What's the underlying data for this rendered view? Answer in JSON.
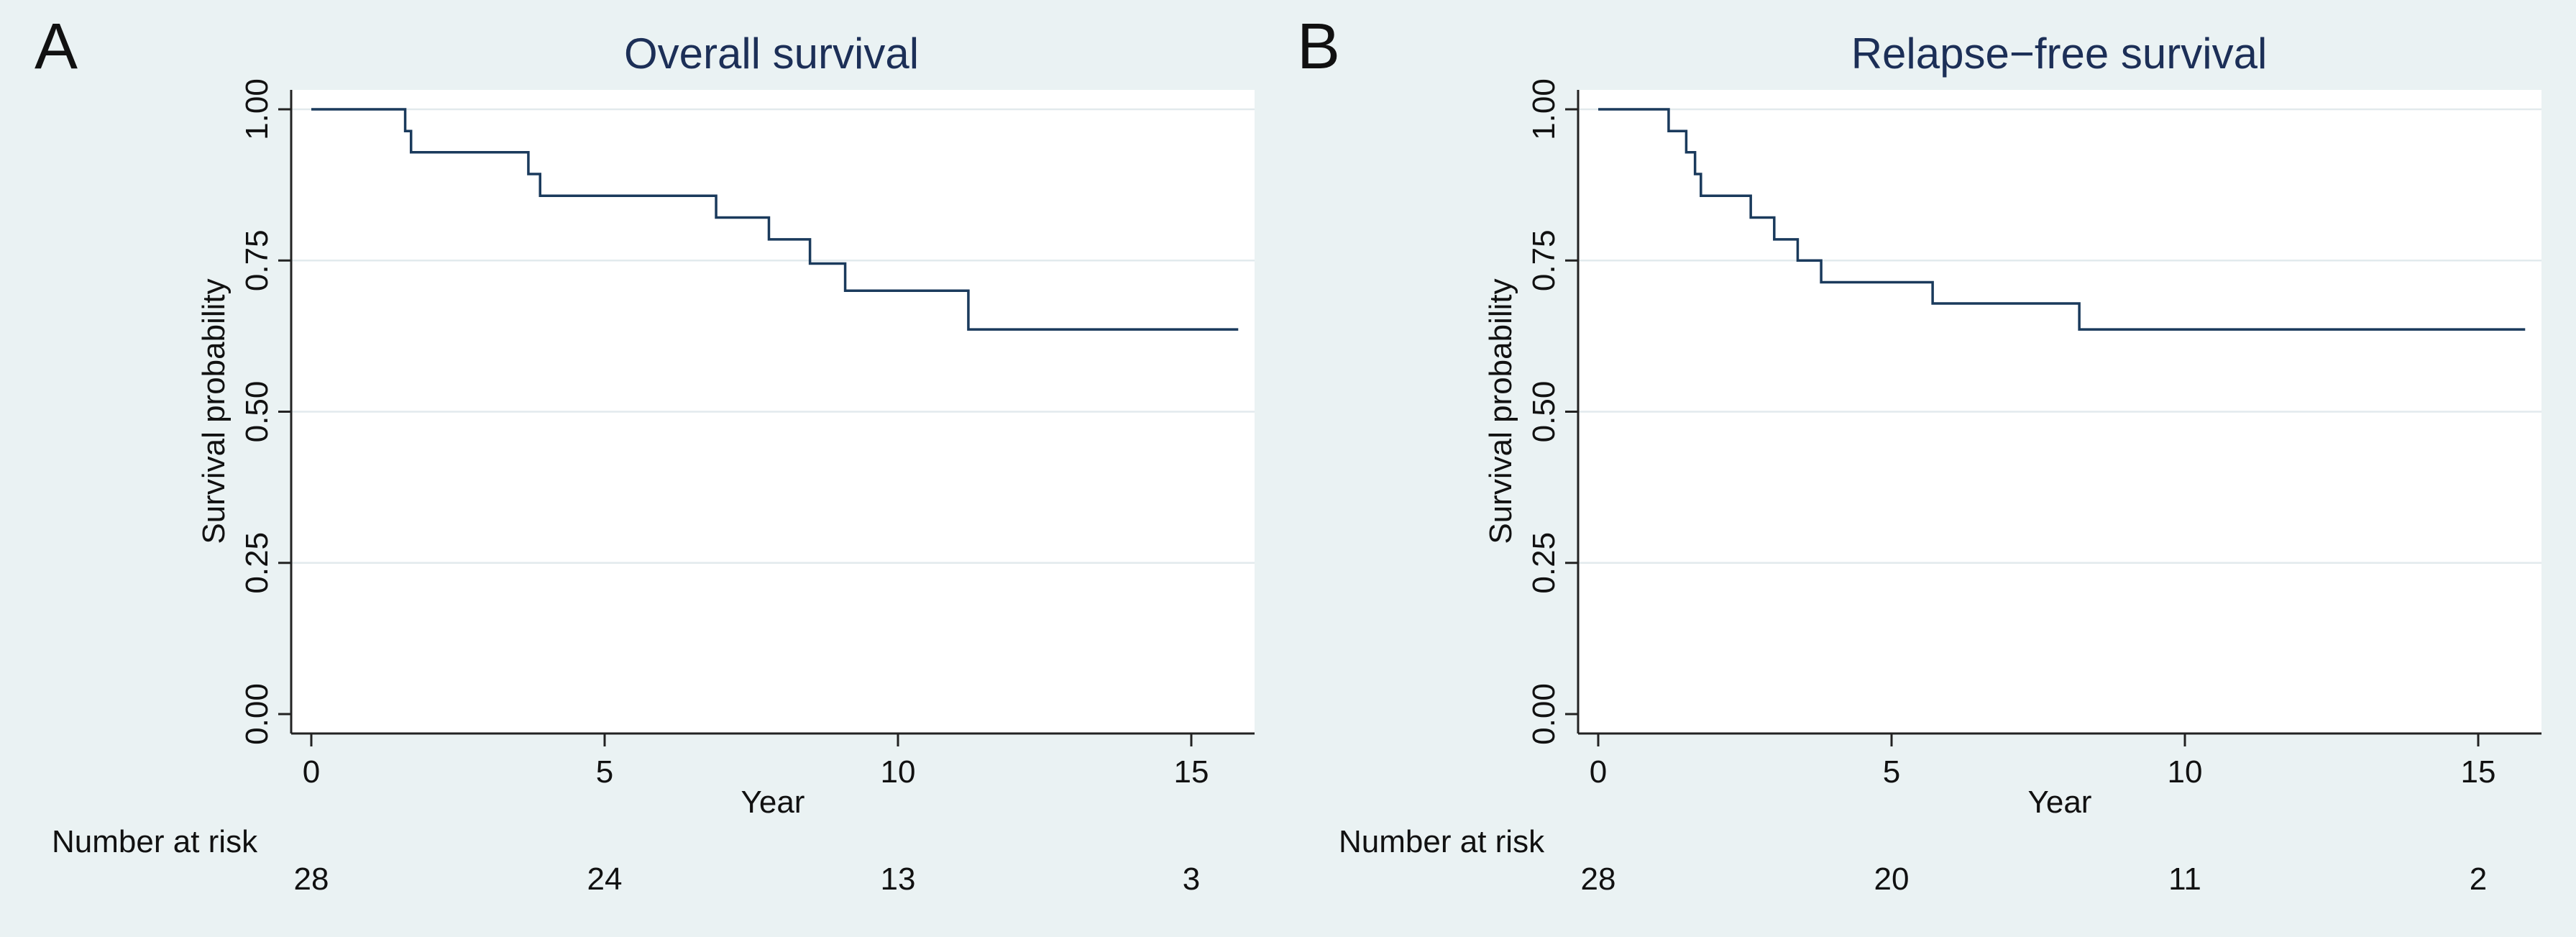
{
  "chart_data": [
    {
      "type": "line",
      "panel_label": "A",
      "title": "Overall survival",
      "xlabel": "Year",
      "ylabel": "Survival probability",
      "xlim": [
        0,
        16
      ],
      "ylim": [
        0,
        1
      ],
      "xticks": [
        0,
        5,
        10,
        15
      ],
      "xtick_labels": [
        "0",
        "5",
        "10",
        "15"
      ],
      "yticks": [
        0,
        0.25,
        0.5,
        0.75,
        1
      ],
      "ytick_labels": [
        "0.00",
        "0.25",
        "0.50",
        "0.75",
        "1.00"
      ],
      "grid": true,
      "series": [
        {
          "name": "Overall survival",
          "step": "post",
          "x": [
            0,
            1.6,
            1.7,
            3.7,
            3.9,
            6.9,
            7.8,
            8.5,
            9.1,
            11.2,
            15.8
          ],
          "y": [
            1.0,
            0.964,
            0.929,
            0.893,
            0.857,
            0.821,
            0.785,
            0.745,
            0.7,
            0.636,
            0.636
          ]
        }
      ],
      "risk_table": {
        "label": "Number at risk",
        "times": [
          0,
          5,
          10,
          15
        ],
        "counts": [
          "28",
          "24",
          "13",
          "3"
        ]
      }
    },
    {
      "type": "line",
      "panel_label": "B",
      "title": "Relapse−free survival",
      "xlabel": "Year",
      "ylabel": "Survival probability",
      "xlim": [
        0,
        16
      ],
      "ylim": [
        0,
        1
      ],
      "xticks": [
        0,
        5,
        10,
        15
      ],
      "xtick_labels": [
        "0",
        "5",
        "10",
        "15"
      ],
      "yticks": [
        0,
        0.25,
        0.5,
        0.75,
        1
      ],
      "ytick_labels": [
        "0.00",
        "0.25",
        "0.50",
        "0.75",
        "1.00"
      ],
      "grid": true,
      "series": [
        {
          "name": "Relapse-free survival",
          "step": "post",
          "x": [
            0,
            1.2,
            1.5,
            1.65,
            1.75,
            2.6,
            3.0,
            3.4,
            3.8,
            5.7,
            8.2,
            15.8
          ],
          "y": [
            1.0,
            0.964,
            0.929,
            0.893,
            0.857,
            0.821,
            0.785,
            0.75,
            0.714,
            0.679,
            0.636,
            0.636
          ]
        }
      ],
      "risk_table": {
        "label": "Number at risk",
        "times": [
          0,
          5,
          10,
          15
        ],
        "counts": [
          "28",
          "20",
          "11",
          "2"
        ]
      }
    }
  ],
  "colors": {
    "background": "#eaf2f3",
    "plot_background": "#ffffff",
    "line": "#1a3a5c",
    "title": "#1c2f57",
    "grid": "#e2eaed",
    "axis": "#222222"
  }
}
